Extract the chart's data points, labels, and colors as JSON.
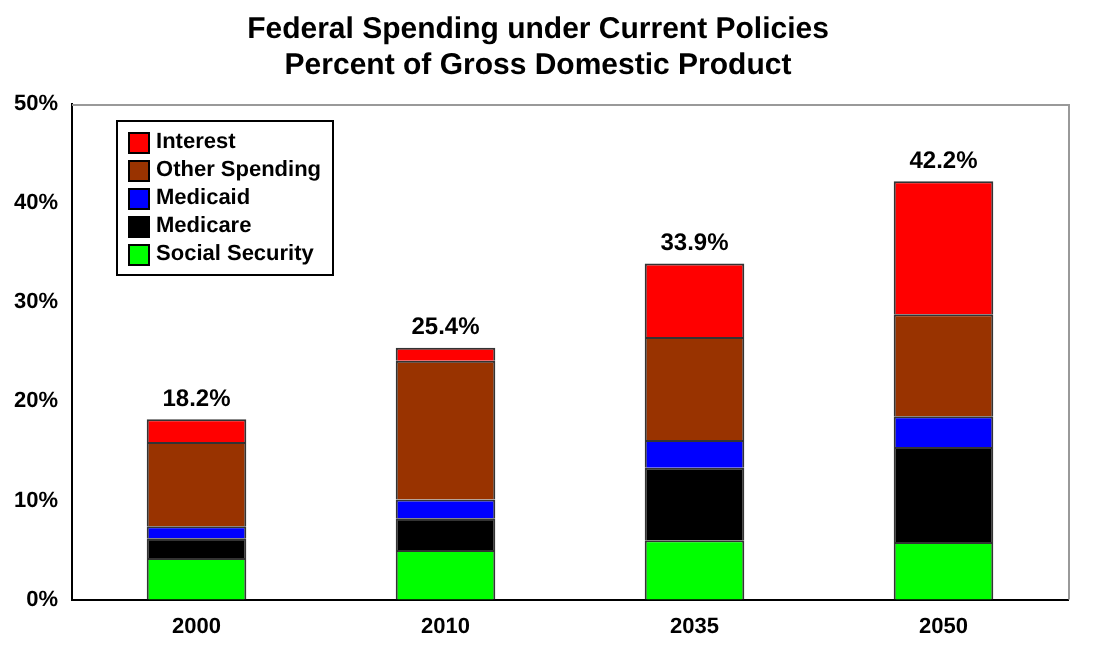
{
  "chart_data": {
    "type": "bar",
    "title": "Federal Spending under Current Policies",
    "subtitle": "Percent of Gross Domestic Product",
    "categories": [
      "2000",
      "2010",
      "2035",
      "2050"
    ],
    "stacked": true,
    "series": [
      {
        "name": "Social Security",
        "color": "#00ff00",
        "values": [
          4.2,
          5.0,
          6.0,
          5.8
        ]
      },
      {
        "name": "Medicare",
        "color": "#000000",
        "values": [
          2.0,
          3.2,
          7.3,
          9.6
        ]
      },
      {
        "name": "Medicaid",
        "color": "#0000ff",
        "values": [
          1.2,
          1.9,
          2.8,
          3.1
        ]
      },
      {
        "name": "Other Spending",
        "color": "#993300",
        "values": [
          8.5,
          14.0,
          10.4,
          10.3
        ]
      },
      {
        "name": "Interest",
        "color": "#ff0000",
        "values": [
          2.3,
          1.3,
          7.4,
          13.4
        ]
      }
    ],
    "totals": [
      "18.2%",
      "25.4%",
      "33.9%",
      "42.2%"
    ],
    "ylim": [
      0,
      50
    ],
    "yticks": [
      {
        "value": 0,
        "label": "0%"
      },
      {
        "value": 10,
        "label": "10%"
      },
      {
        "value": 20,
        "label": "20%"
      },
      {
        "value": 30,
        "label": "30%"
      },
      {
        "value": 40,
        "label": "40%"
      },
      {
        "value": 50,
        "label": "50%"
      }
    ],
    "grid": false,
    "legend": "top left"
  }
}
